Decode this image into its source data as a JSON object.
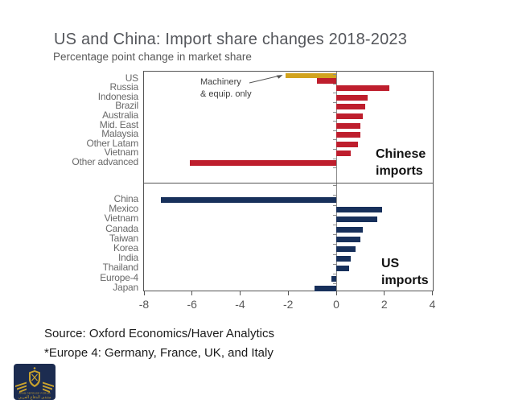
{
  "page": {
    "title": "US and China: Import share changes 2018-2023",
    "subtitle": "Percentage point change in market share",
    "source_line1": "Source: Oxford Economics/Haver Analytics",
    "source_line2": "*Europe 4: Germany, France, UK, and Italy"
  },
  "annotation": {
    "line1": "Machinery",
    "line2": "& equip. only"
  },
  "logo": {
    "org_name": "ARAB DEFENSE FORUM",
    "arabic_name": "منتدى الدفاع العربي"
  },
  "colors": {
    "red": "#BE1E2D",
    "navy": "#17305B",
    "gold": "#D2A31E",
    "border": "#555555",
    "axis": "#8a8a8a",
    "title_gray": "#54565b"
  },
  "chart_data": {
    "type": "bar",
    "orientation": "horizontal",
    "title": "US and China: Import share changes 2018-2023",
    "subtitle": "Percentage point change in market share",
    "xlim": [
      -8,
      4
    ],
    "x_ticks": [
      -8,
      -6,
      -4,
      -2,
      0,
      2,
      4
    ],
    "grid": false,
    "panels": [
      {
        "label": "Chinese\nimports",
        "bar_color": "#BE1E2D",
        "categories": [
          "US",
          "Russia",
          "Indonesia",
          "Brazil",
          "Australia",
          "Mid. East",
          "Malaysia",
          "Other Latam",
          "Vietnam",
          "Other advanced"
        ],
        "values": [
          -0.8,
          2.2,
          1.3,
          1.2,
          1.1,
          1.0,
          1.0,
          0.9,
          0.6,
          -6.1
        ],
        "overlay_bar": {
          "category": "US",
          "label": "Machinery & equip. only",
          "value": -2.1,
          "color": "#D2A31E"
        }
      },
      {
        "label": "US\nimports",
        "bar_color": "#17305B",
        "categories": [
          "China",
          "Mexico",
          "Vietnam",
          "Canada",
          "Taiwan",
          "Korea",
          "India",
          "Thailand",
          "Europe-4",
          "Japan"
        ],
        "values": [
          -7.3,
          1.9,
          1.7,
          1.1,
          1.0,
          0.8,
          0.6,
          0.55,
          -0.2,
          -0.9
        ]
      }
    ]
  }
}
